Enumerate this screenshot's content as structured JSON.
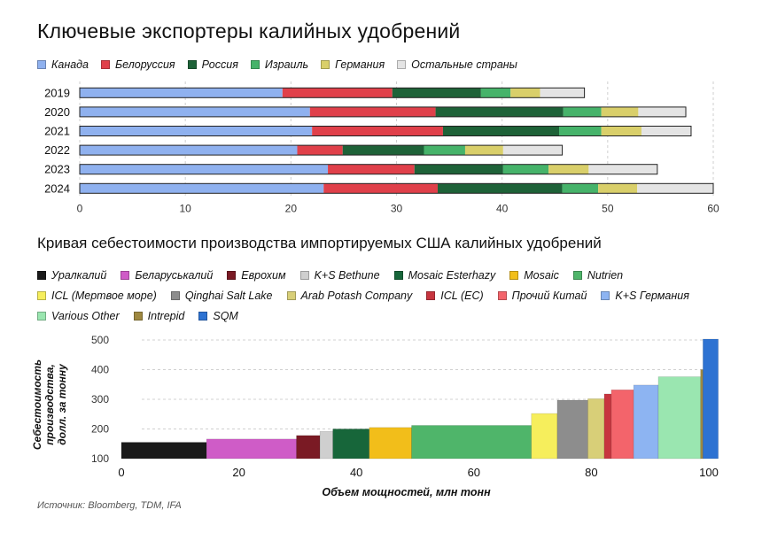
{
  "title_top": "Ключевые экспортеры калийных удобрений",
  "title_bottom": "Кривая себестоимости производства импортируемых США калийных удобрений",
  "source": "Источник: Bloomberg, TDM, IFA",
  "chart_data": [
    {
      "type": "bar",
      "stacked": true,
      "orientation": "horizontal",
      "title": "Ключевые экспортеры калийных удобрений",
      "categories": [
        "2019",
        "2020",
        "2021",
        "2022",
        "2023",
        "2024"
      ],
      "series": [
        {
          "name": "Канада",
          "color": "#8fb1ef",
          "values": [
            19.2,
            21.8,
            22.0,
            20.6,
            23.5,
            23.1
          ]
        },
        {
          "name": "Белоруссия",
          "color": "#e0404a",
          "values": [
            10.4,
            11.9,
            12.4,
            4.3,
            8.2,
            10.8
          ]
        },
        {
          "name": "Россия",
          "color": "#1e6238",
          "values": [
            8.4,
            12.1,
            11.0,
            7.7,
            8.4,
            11.8
          ]
        },
        {
          "name": "Израиль",
          "color": "#46b36a",
          "values": [
            2.8,
            3.6,
            4.0,
            3.9,
            4.3,
            3.4
          ]
        },
        {
          "name": "Германия",
          "color": "#d9cf6a",
          "values": [
            2.8,
            3.5,
            3.8,
            3.6,
            3.8,
            3.7
          ]
        },
        {
          "name": "Остальные страны",
          "color": "#e4e4e4",
          "values": [
            4.2,
            4.5,
            4.7,
            5.6,
            6.5,
            7.2
          ]
        }
      ],
      "xlim": [
        0,
        60
      ],
      "xticks": [
        0,
        10,
        20,
        30,
        40,
        50,
        60
      ],
      "grid": true,
      "legend": "top"
    },
    {
      "type": "bar",
      "variant": "cost-curve",
      "title": "Кривая себестоимости производства импортируемых США калийных удобрений",
      "xlabel": "Объем мощностей, млн тонн",
      "ylabel": "Себестоимость производства, долл. за тонну",
      "xlim": [
        0,
        100
      ],
      "ylim": [
        100,
        500
      ],
      "xticks": [
        0,
        20,
        40,
        60,
        80,
        100
      ],
      "yticks": [
        100,
        200,
        300,
        400,
        500
      ],
      "legend": "top",
      "series": [
        {
          "name": "Уралкалий",
          "color": "#1a1a1a",
          "x0": 0,
          "x1": 14.5,
          "y": 155
        },
        {
          "name": "Беларуськалий",
          "color": "#cf5cc7",
          "x0": 14.5,
          "x1": 29.8,
          "y": 166
        },
        {
          "name": "Еврохим",
          "color": "#7a1a24",
          "x0": 29.8,
          "x1": 33.8,
          "y": 178
        },
        {
          "name": "K+S Bethune",
          "color": "#cfcfcf",
          "x0": 33.8,
          "x1": 36.0,
          "y": 192
        },
        {
          "name": "Mosaic Esterhazy",
          "color": "#17663a",
          "x0": 36.0,
          "x1": 42.2,
          "y": 200
        },
        {
          "name": "Mosaic",
          "color": "#f2be1a",
          "x0": 42.2,
          "x1": 49.4,
          "y": 205
        },
        {
          "name": "Nutrien",
          "color": "#4fb56a",
          "x0": 49.4,
          "x1": 69.8,
          "y": 212
        },
        {
          "name": "ICL (Мертвое море)",
          "color": "#f6ee5c",
          "x0": 69.8,
          "x1": 74.2,
          "y": 252
        },
        {
          "name": "Qinghai Salt Lake",
          "color": "#8d8d8d",
          "x0": 74.2,
          "x1": 79.4,
          "y": 297
        },
        {
          "name": "Arab Potash Company",
          "color": "#d8cf78",
          "x0": 79.4,
          "x1": 82.2,
          "y": 302
        },
        {
          "name": "ICL (EC)",
          "color": "#c7353f",
          "x0": 82.2,
          "x1": 83.4,
          "y": 318
        },
        {
          "name": "Прочий Китай",
          "color": "#f3646b",
          "x0": 83.4,
          "x1": 87.2,
          "y": 332
        },
        {
          "name": "K+S Германия",
          "color": "#8db4f2",
          "x0": 87.2,
          "x1": 91.4,
          "y": 348
        },
        {
          "name": "Various Other",
          "color": "#9ae6b0",
          "x0": 91.4,
          "x1": 98.6,
          "y": 376
        },
        {
          "name": "Intrepid",
          "color": "#9e8840",
          "x0": 98.6,
          "x1": 99.0,
          "y": 400
        },
        {
          "name": "SQM",
          "color": "#2d72d2",
          "x0": 99.0,
          "x1": 101.6,
          "y": 503
        }
      ]
    }
  ]
}
